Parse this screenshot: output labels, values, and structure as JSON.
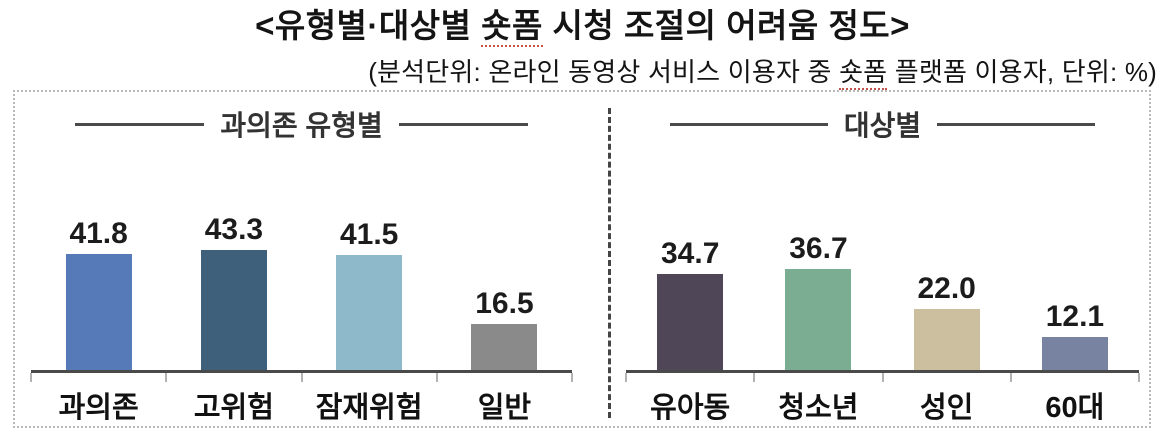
{
  "title": {
    "pre": "<유형별·대상별 ",
    "highlight": "숏폼",
    "post": " 시청 조절의 어려움 정도>"
  },
  "subtitle": {
    "pre": "(분석단위: 온라인 동영상 서비스 이용자 중 ",
    "highlight": "숏폼",
    "post": " 플랫폼 이용자, 단위: %)"
  },
  "chart_data": {
    "type": "bar",
    "unit": "%",
    "ylim": [
      0,
      50
    ],
    "grid": false,
    "value_labels": true,
    "axis_color": "#4a4a4a",
    "groups": [
      {
        "title": "과의존 유형별",
        "categories": [
          "과의존",
          "고위험",
          "잠재위험",
          "일반"
        ],
        "values": [
          41.8,
          43.3,
          41.5,
          16.5
        ],
        "colors": [
          "#567ab7",
          "#3e607a",
          "#8db9cb",
          "#8a8a8a"
        ]
      },
      {
        "title": "대상별",
        "categories": [
          "유아동",
          "청소년",
          "성인",
          "60대"
        ],
        "values": [
          34.7,
          36.7,
          22.0,
          12.1
        ],
        "colors": [
          "#4f4657",
          "#7bad93",
          "#cbbfa0",
          "#7882a1"
        ]
      }
    ]
  }
}
